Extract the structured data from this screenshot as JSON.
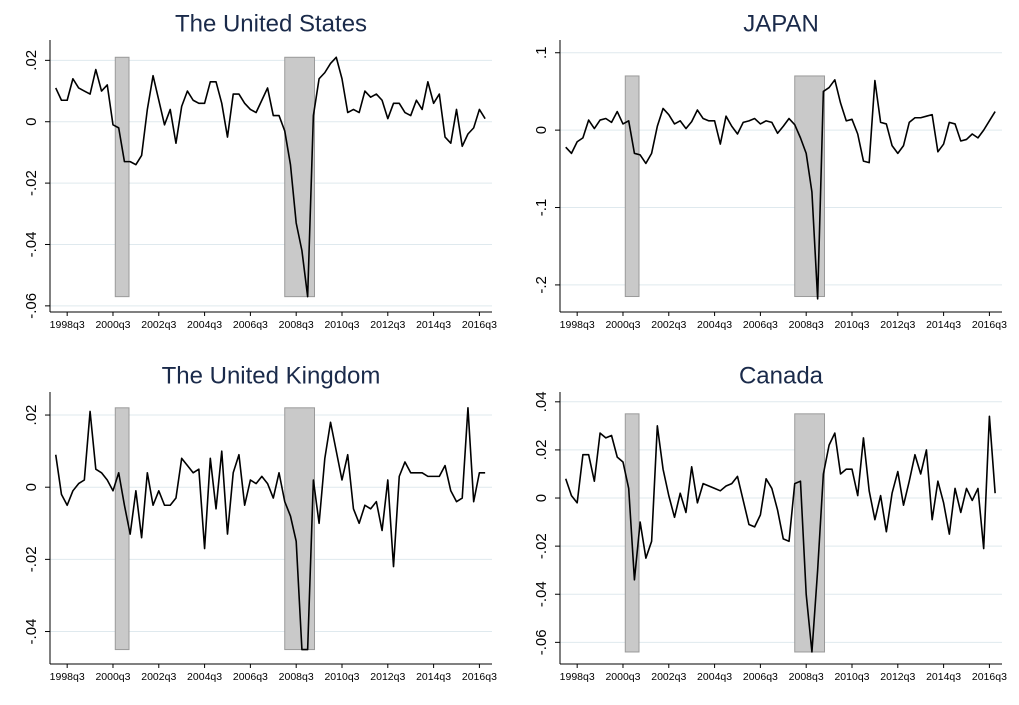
{
  "chart_data": [
    {
      "type": "line",
      "title": "The United States",
      "color": "#000000",
      "grid": true,
      "x": [
        1998,
        1998.25,
        1998.5,
        1998.75,
        1999,
        1999.25,
        1999.5,
        1999.75,
        2000,
        2000.25,
        2000.5,
        2000.75,
        2001,
        2001.25,
        2001.5,
        2001.75,
        2002,
        2002.25,
        2002.5,
        2002.75,
        2003,
        2003.25,
        2003.5,
        2003.75,
        2004,
        2004.25,
        2004.5,
        2004.75,
        2005,
        2005.25,
        2005.5,
        2005.75,
        2006,
        2006.25,
        2006.5,
        2006.75,
        2007,
        2007.25,
        2007.5,
        2007.75,
        2008,
        2008.25,
        2008.5,
        2008.75,
        2009,
        2009.25,
        2009.5,
        2009.75,
        2010,
        2010.25,
        2010.5,
        2010.75,
        2011,
        2011.25,
        2011.5,
        2011.75,
        2012,
        2012.25,
        2012.5,
        2012.75,
        2013,
        2013.25,
        2013.5,
        2013.75,
        2014,
        2014.25,
        2014.5,
        2014.75,
        2015,
        2015.25,
        2015.5,
        2015.75,
        2016,
        2016.25,
        2016.5,
        2016.75
      ],
      "values": [
        0.011,
        0.007,
        0.007,
        0.014,
        0.011,
        0.01,
        0.009,
        0.017,
        0.01,
        0.012,
        -0.001,
        -0.002,
        -0.013,
        -0.013,
        -0.014,
        -0.011,
        0.004,
        0.015,
        0.007,
        -0.001,
        0.004,
        -0.007,
        0.005,
        0.01,
        0.007,
        0.006,
        0.006,
        0.013,
        0.013,
        0.006,
        -0.005,
        0.009,
        0.009,
        0.006,
        0.004,
        0.003,
        0.007,
        0.011,
        0.002,
        0.002,
        -0.003,
        -0.014,
        -0.033,
        -0.042,
        -0.057,
        0.002,
        0.014,
        0.016,
        0.019,
        0.021,
        0.014,
        0.003,
        0.004,
        0.003,
        0.01,
        0.008,
        0.009,
        0.007,
        0.001,
        0.006,
        0.006,
        0.003,
        0.002,
        0.007,
        0.004,
        0.013,
        0.006,
        0.009,
        -0.005,
        -0.007,
        0.004,
        -0.008,
        -0.004,
        -0.002,
        0.004,
        0.001
      ],
      "xlim": [
        1997.75,
        2017.05
      ],
      "ylim": [
        -0.062,
        0.025
      ],
      "xticks": [
        {
          "value": 1998.5,
          "label": "1998q3"
        },
        {
          "value": 2000.5,
          "label": "2000q3"
        },
        {
          "value": 2002.5,
          "label": "2002q3"
        },
        {
          "value": 2004.5,
          "label": "2004q3"
        },
        {
          "value": 2006.5,
          "label": "2006q3"
        },
        {
          "value": 2008.5,
          "label": "2008q3"
        },
        {
          "value": 2010.5,
          "label": "2010q3"
        },
        {
          "value": 2012.5,
          "label": "2012q3"
        },
        {
          "value": 2014.5,
          "label": "2014q3"
        },
        {
          "value": 2016.5,
          "label": "2016q3"
        }
      ],
      "yticks": [
        {
          "value": -0.06,
          "label": "-.06"
        },
        {
          "value": -0.04,
          "label": "-.04"
        },
        {
          "value": -0.02,
          "label": "-.02"
        },
        0,
        {
          "value": 0.02,
          "label": ".02"
        }
      ],
      "shaded_regions": [
        {
          "x0": 2000.6,
          "x1": 2001.2,
          "y0": -0.057,
          "y1": 0.021
        },
        {
          "x0": 2008.0,
          "x1": 2009.3,
          "y0": -0.057,
          "y1": 0.021
        }
      ]
    },
    {
      "type": "line",
      "title": "JAPAN",
      "color": "#000000",
      "grid": true,
      "x": [
        1998,
        1998.25,
        1998.5,
        1998.75,
        1999,
        1999.25,
        1999.5,
        1999.75,
        2000,
        2000.25,
        2000.5,
        2000.75,
        2001,
        2001.25,
        2001.5,
        2001.75,
        2002,
        2002.25,
        2002.5,
        2002.75,
        2003,
        2003.25,
        2003.5,
        2003.75,
        2004,
        2004.25,
        2004.5,
        2004.75,
        2005,
        2005.25,
        2005.5,
        2005.75,
        2006,
        2006.25,
        2006.5,
        2006.75,
        2007,
        2007.25,
        2007.5,
        2007.75,
        2008,
        2008.25,
        2008.5,
        2008.75,
        2009,
        2009.25,
        2009.5,
        2009.75,
        2010,
        2010.25,
        2010.5,
        2010.75,
        2011,
        2011.25,
        2011.5,
        2011.75,
        2012,
        2012.25,
        2012.5,
        2012.75,
        2013,
        2013.25,
        2013.5,
        2013.75,
        2014,
        2014.25,
        2014.5,
        2014.75,
        2015,
        2015.25,
        2015.5,
        2015.75,
        2016,
        2016.25,
        2016.5,
        2016.75
      ],
      "values": [
        -0.022,
        -0.03,
        -0.015,
        -0.01,
        0.013,
        0.002,
        0.013,
        0.015,
        0.01,
        0.024,
        0.008,
        0.012,
        -0.03,
        -0.032,
        -0.043,
        -0.03,
        0.005,
        0.028,
        0.02,
        0.008,
        0.012,
        0.002,
        0.011,
        0.026,
        0.015,
        0.012,
        0.012,
        -0.018,
        0.018,
        0.005,
        -0.005,
        0.01,
        0.012,
        0.015,
        0.008,
        0.012,
        0.01,
        -0.004,
        0.005,
        0.015,
        0.007,
        -0.01,
        -0.03,
        -0.08,
        -0.218,
        0.05,
        0.055,
        0.065,
        0.035,
        0.012,
        0.014,
        -0.005,
        -0.04,
        -0.042,
        0.064,
        0.01,
        0.008,
        -0.02,
        -0.03,
        -0.02,
        0.01,
        0.016,
        0.016,
        0.018,
        0.02,
        -0.028,
        -0.018,
        0.01,
        0.008,
        -0.014,
        -0.012,
        -0.005,
        -0.01,
        0.0,
        0.012,
        0.024
      ],
      "xlim": [
        1997.75,
        2017.05
      ],
      "ylim": [
        -0.235,
        0.11
      ],
      "xticks": [
        {
          "value": 1998.5,
          "label": "1998q3"
        },
        {
          "value": 2000.5,
          "label": "2000q3"
        },
        {
          "value": 2002.5,
          "label": "2002q3"
        },
        {
          "value": 2004.5,
          "label": "2004q3"
        },
        {
          "value": 2006.5,
          "label": "2006q3"
        },
        {
          "value": 2008.5,
          "label": "2008q3"
        },
        {
          "value": 2010.5,
          "label": "2010q3"
        },
        {
          "value": 2012.5,
          "label": "2012q3"
        },
        {
          "value": 2014.5,
          "label": "2014q3"
        },
        {
          "value": 2016.5,
          "label": "2016q3"
        }
      ],
      "yticks": [
        {
          "value": -0.2,
          "label": "-.2"
        },
        {
          "value": -0.1,
          "label": "-.1"
        },
        0,
        {
          "value": 0.1,
          "label": ".1"
        }
      ],
      "shaded_regions": [
        {
          "x0": 2000.6,
          "x1": 2001.2,
          "y0": -0.215,
          "y1": 0.07
        },
        {
          "x0": 2008.0,
          "x1": 2009.3,
          "y0": -0.215,
          "y1": 0.07
        }
      ]
    },
    {
      "type": "line",
      "title": "The United Kingdom",
      "color": "#000000",
      "grid": true,
      "x": [
        1998,
        1998.25,
        1998.5,
        1998.75,
        1999,
        1999.25,
        1999.5,
        1999.75,
        2000,
        2000.25,
        2000.5,
        2000.75,
        2001,
        2001.25,
        2001.5,
        2001.75,
        2002,
        2002.25,
        2002.5,
        2002.75,
        2003,
        2003.25,
        2003.5,
        2003.75,
        2004,
        2004.25,
        2004.5,
        2004.75,
        2005,
        2005.25,
        2005.5,
        2005.75,
        2006,
        2006.25,
        2006.5,
        2006.75,
        2007,
        2007.25,
        2007.5,
        2007.75,
        2008,
        2008.25,
        2008.5,
        2008.75,
        2009,
        2009.25,
        2009.5,
        2009.75,
        2010,
        2010.25,
        2010.5,
        2010.75,
        2011,
        2011.25,
        2011.5,
        2011.75,
        2012,
        2012.25,
        2012.5,
        2012.75,
        2013,
        2013.25,
        2013.5,
        2013.75,
        2014,
        2014.25,
        2014.5,
        2014.75,
        2015,
        2015.25,
        2015.5,
        2015.75,
        2016,
        2016.25,
        2016.5,
        2016.75
      ],
      "values": [
        0.009,
        -0.002,
        -0.005,
        -0.001,
        0.001,
        0.002,
        0.021,
        0.005,
        0.004,
        0.002,
        -0.001,
        0.004,
        -0.005,
        -0.013,
        -0.001,
        -0.014,
        0.004,
        -0.005,
        -0.001,
        -0.005,
        -0.005,
        -0.003,
        0.008,
        0.006,
        0.004,
        0.005,
        -0.017,
        0.008,
        -0.006,
        0.01,
        -0.013,
        0.004,
        0.009,
        -0.005,
        0.002,
        0.001,
        0.003,
        0.001,
        -0.003,
        0.004,
        -0.004,
        -0.008,
        -0.015,
        -0.045,
        -0.045,
        0.002,
        -0.01,
        0.008,
        0.018,
        0.01,
        0.002,
        0.009,
        -0.006,
        -0.01,
        -0.005,
        -0.006,
        -0.004,
        -0.012,
        0.002,
        -0.022,
        0.003,
        0.007,
        0.004,
        0.004,
        0.004,
        0.003,
        0.003,
        0.003,
        0.006,
        -0.001,
        -0.004,
        -0.003,
        0.022,
        -0.004,
        0.004,
        0.004
      ],
      "xlim": [
        1997.75,
        2017.05
      ],
      "ylim": [
        -0.049,
        0.025
      ],
      "xticks": [
        {
          "value": 1998.5,
          "label": "1998q3"
        },
        {
          "value": 2000.5,
          "label": "2000q3"
        },
        {
          "value": 2002.5,
          "label": "2002q3"
        },
        {
          "value": 2004.5,
          "label": "2004q3"
        },
        {
          "value": 2006.5,
          "label": "2006q3"
        },
        {
          "value": 2008.5,
          "label": "2008q3"
        },
        {
          "value": 2010.5,
          "label": "2010q3"
        },
        {
          "value": 2012.5,
          "label": "2012q3"
        },
        {
          "value": 2014.5,
          "label": "2014q3"
        },
        {
          "value": 2016.5,
          "label": "2016q3"
        }
      ],
      "yticks": [
        {
          "value": -0.04,
          "label": "-.04"
        },
        {
          "value": -0.02,
          "label": "-.02"
        },
        0,
        {
          "value": 0.02,
          "label": ".02"
        }
      ],
      "shaded_regions": [
        {
          "x0": 2000.6,
          "x1": 2001.2,
          "y0": -0.045,
          "y1": 0.022
        },
        {
          "x0": 2008.0,
          "x1": 2009.3,
          "y0": -0.045,
          "y1": 0.022
        }
      ]
    },
    {
      "type": "line",
      "title": "Canada",
      "color": "#000000",
      "grid": true,
      "x": [
        1998,
        1998.25,
        1998.5,
        1998.75,
        1999,
        1999.25,
        1999.5,
        1999.75,
        2000,
        2000.25,
        2000.5,
        2000.75,
        2001,
        2001.25,
        2001.5,
        2001.75,
        2002,
        2002.25,
        2002.5,
        2002.75,
        2003,
        2003.25,
        2003.5,
        2003.75,
        2004,
        2004.25,
        2004.5,
        2004.75,
        2005,
        2005.25,
        2005.5,
        2005.75,
        2006,
        2006.25,
        2006.5,
        2006.75,
        2007,
        2007.25,
        2007.5,
        2007.75,
        2008,
        2008.25,
        2008.5,
        2008.75,
        2009,
        2009.25,
        2009.5,
        2009.75,
        2010,
        2010.25,
        2010.5,
        2010.75,
        2011,
        2011.25,
        2011.5,
        2011.75,
        2012,
        2012.25,
        2012.5,
        2012.75,
        2013,
        2013.25,
        2013.5,
        2013.75,
        2014,
        2014.25,
        2014.5,
        2014.75,
        2015,
        2015.25,
        2015.5,
        2015.75,
        2016,
        2016.25,
        2016.5,
        2016.75
      ],
      "values": [
        0.008,
        0.001,
        -0.002,
        0.018,
        0.018,
        0.007,
        0.027,
        0.025,
        0.026,
        0.017,
        0.015,
        0.004,
        -0.034,
        -0.01,
        -0.025,
        -0.018,
        0.03,
        0.012,
        0.001,
        -0.008,
        0.002,
        -0.006,
        0.013,
        -0.002,
        0.006,
        0.005,
        0.004,
        0.003,
        0.005,
        0.006,
        0.009,
        -0.001,
        -0.011,
        -0.012,
        -0.007,
        0.008,
        0.004,
        -0.005,
        -0.017,
        -0.018,
        0.006,
        0.007,
        -0.04,
        -0.064,
        -0.03,
        0.01,
        0.022,
        0.027,
        0.01,
        0.012,
        0.012,
        0.001,
        0.025,
        0.003,
        -0.009,
        0.001,
        -0.014,
        0.002,
        0.011,
        -0.003,
        0.007,
        0.018,
        0.01,
        0.02,
        -0.009,
        0.007,
        -0.002,
        -0.015,
        0.004,
        -0.006,
        0.004,
        -0.001,
        0.004,
        -0.021,
        0.034,
        0.002
      ],
      "xlim": [
        1997.75,
        2017.05
      ],
      "ylim": [
        -0.069,
        0.042
      ],
      "xticks": [
        {
          "value": 1998.5,
          "label": "1998q3"
        },
        {
          "value": 2000.5,
          "label": "2000q3"
        },
        {
          "value": 2002.5,
          "label": "2002q3"
        },
        {
          "value": 2004.5,
          "label": "2004q3"
        },
        {
          "value": 2006.5,
          "label": "2006q3"
        },
        {
          "value": 2008.5,
          "label": "2008q3"
        },
        {
          "value": 2010.5,
          "label": "2010q3"
        },
        {
          "value": 2012.5,
          "label": "2012q3"
        },
        {
          "value": 2014.5,
          "label": "2014q3"
        },
        {
          "value": 2016.5,
          "label": "2016q3"
        }
      ],
      "yticks": [
        {
          "value": -0.06,
          "label": "-.06"
        },
        {
          "value": -0.04,
          "label": "-.04"
        },
        {
          "value": -0.02,
          "label": "-.02"
        },
        0,
        {
          "value": 0.02,
          "label": ".02"
        },
        {
          "value": 0.04,
          "label": ".04"
        }
      ],
      "shaded_regions": [
        {
          "x0": 2000.6,
          "x1": 2001.2,
          "y0": -0.064,
          "y1": 0.035
        },
        {
          "x0": 2008.0,
          "x1": 2009.3,
          "y0": -0.064,
          "y1": 0.035
        }
      ]
    }
  ]
}
